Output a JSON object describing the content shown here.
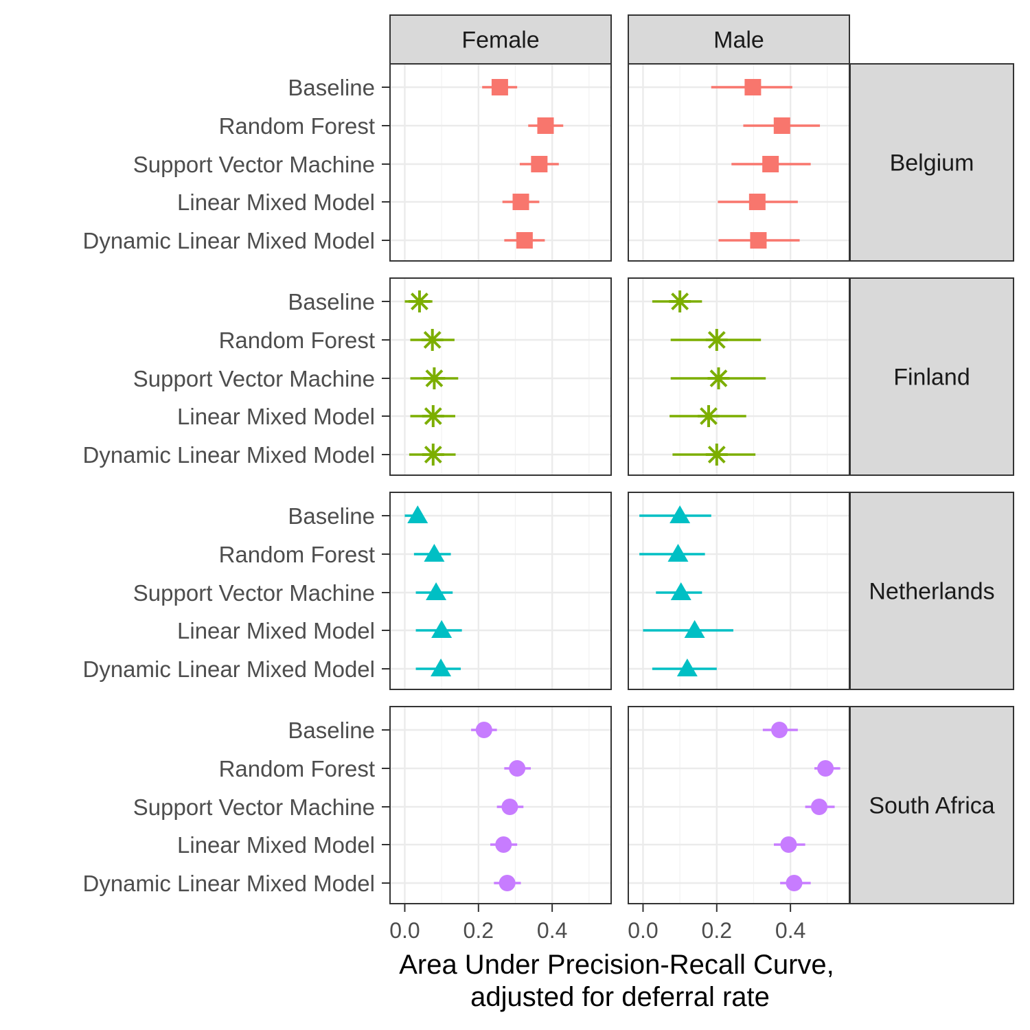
{
  "chart_data": {
    "type": "dot-errorbar",
    "facet_columns": [
      "Female",
      "Male"
    ],
    "facet_rows": [
      "Belgium",
      "Finland",
      "Netherlands",
      "South Africa"
    ],
    "models": [
      "Baseline",
      "Random Forest",
      "Support Vector Machine",
      "Linear Mixed Model",
      "Dynamic Linear Mixed Model"
    ],
    "xlabel_line1": "Area Under Precision-Recall Curve,",
    "xlabel_line2": "adjusted for deferral rate",
    "xlim": [
      -0.04,
      0.56
    ],
    "xticks": [
      0.0,
      0.2,
      0.4
    ],
    "xtick_labels": [
      "0.0",
      "0.2",
      "0.4"
    ],
    "grid": true,
    "series": [
      {
        "country": "Belgium",
        "color": "#F8766D",
        "shape": "square",
        "Female": [
          [
            0.258,
            0.21,
            0.305
          ],
          [
            0.382,
            0.335,
            0.43
          ],
          [
            0.365,
            0.312,
            0.418
          ],
          [
            0.315,
            0.265,
            0.365
          ],
          [
            0.325,
            0.27,
            0.38
          ]
        ],
        "Male": [
          [
            0.298,
            0.185,
            0.405
          ],
          [
            0.377,
            0.272,
            0.48
          ],
          [
            0.346,
            0.24,
            0.455
          ],
          [
            0.31,
            0.203,
            0.42
          ],
          [
            0.313,
            0.205,
            0.425
          ]
        ]
      },
      {
        "country": "Finland",
        "color": "#7CAE00",
        "shape": "asterisk",
        "Female": [
          [
            0.04,
            0.0,
            0.075
          ],
          [
            0.075,
            0.015,
            0.135
          ],
          [
            0.08,
            0.015,
            0.145
          ],
          [
            0.077,
            0.015,
            0.137
          ],
          [
            0.077,
            0.012,
            0.138
          ]
        ],
        "Male": [
          [
            0.1,
            0.025,
            0.16
          ],
          [
            0.2,
            0.075,
            0.32
          ],
          [
            0.205,
            0.075,
            0.333
          ],
          [
            0.178,
            0.072,
            0.28
          ],
          [
            0.2,
            0.08,
            0.305
          ]
        ]
      },
      {
        "country": "Netherlands",
        "color": "#00BFC4",
        "shape": "triangle",
        "Female": [
          [
            0.035,
            0.0,
            0.045
          ],
          [
            0.08,
            0.025,
            0.125
          ],
          [
            0.085,
            0.03,
            0.13
          ],
          [
            0.1,
            0.03,
            0.155
          ],
          [
            0.098,
            0.03,
            0.152
          ]
        ],
        "Male": [
          [
            0.1,
            -0.01,
            0.185
          ],
          [
            0.095,
            -0.01,
            0.168
          ],
          [
            0.103,
            0.035,
            0.16
          ],
          [
            0.14,
            0.0,
            0.245
          ],
          [
            0.12,
            0.025,
            0.2
          ]
        ]
      },
      {
        "country": "South Africa",
        "color": "#C77CFF",
        "shape": "circle",
        "Female": [
          [
            0.215,
            0.18,
            0.25
          ],
          [
            0.305,
            0.27,
            0.342
          ],
          [
            0.285,
            0.25,
            0.322
          ],
          [
            0.268,
            0.232,
            0.305
          ],
          [
            0.278,
            0.242,
            0.315
          ]
        ],
        "Male": [
          [
            0.37,
            0.325,
            0.42
          ],
          [
            0.495,
            0.465,
            0.535
          ],
          [
            0.478,
            0.44,
            0.52
          ],
          [
            0.395,
            0.355,
            0.44
          ],
          [
            0.41,
            0.372,
            0.455
          ]
        ]
      }
    ]
  }
}
